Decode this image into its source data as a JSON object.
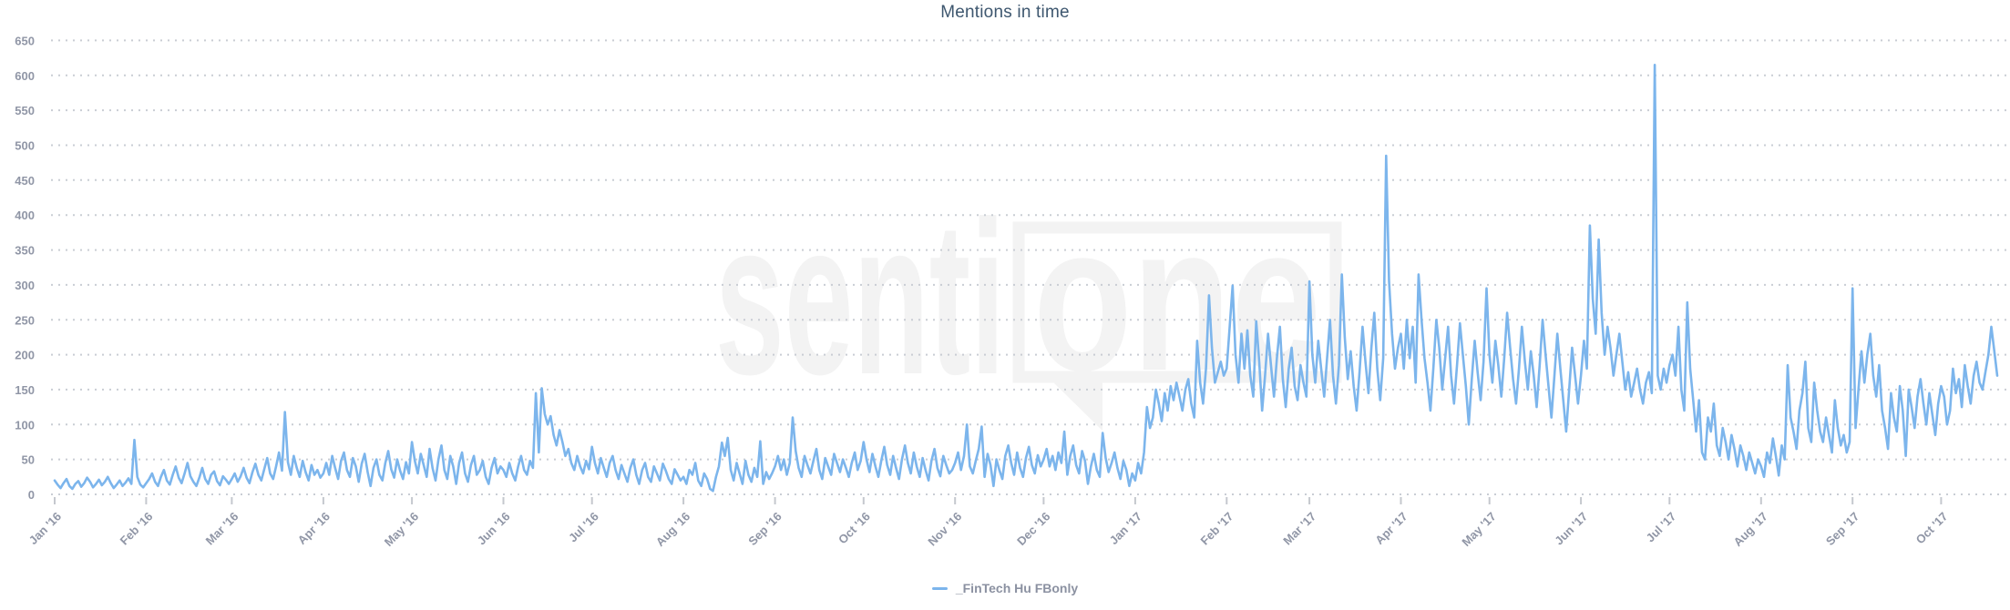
{
  "title": "Mentions in time",
  "legend": {
    "label": "_FinTech Hu FBonly",
    "marker_color": "#7cb5ec"
  },
  "watermark": {
    "part1": "senti",
    "part2": "one"
  },
  "colors": {
    "series_line": "#7cb5ec",
    "grid_dots": "#c9cdd4",
    "axis_labels": "#9096a6",
    "title_text": "#3e576f",
    "legend_text": "#8b91a1",
    "watermark": "#f3f3f3",
    "background": "#ffffff"
  },
  "chart_data": {
    "type": "line",
    "title": "Mentions in time",
    "xlabel": "",
    "ylabel": "",
    "ylim": [
      0,
      650
    ],
    "ytick_step": 50,
    "yticks": [
      0,
      50,
      100,
      150,
      200,
      250,
      300,
      350,
      400,
      450,
      500,
      550,
      600,
      650
    ],
    "grid": "dotted horizontal gridlines",
    "legend_position": "bottom center",
    "x_tick_labels": [
      "Jan '16",
      "Feb '16",
      "Mar '16",
      "Apr '16",
      "May '16",
      "Jun '16",
      "Jul '16",
      "Aug '16",
      "Sep '16",
      "Oct '16",
      "Nov '16",
      "Dec '16",
      "Jan '17",
      "Feb '17",
      "Mar '17",
      "Apr '17",
      "May '17",
      "Jun '17",
      "Jul '17",
      "Aug '17",
      "Sep '17",
      "Oct '17"
    ],
    "x_tick_day_offsets": [
      0,
      31,
      60,
      91,
      121,
      152,
      182,
      213,
      244,
      274,
      305,
      335,
      366,
      397,
      425,
      456,
      486,
      517,
      547,
      578,
      609,
      639
    ],
    "n_points": 659,
    "series": [
      {
        "name": "_FinTech Hu FBonly",
        "color": "#7cb5ec",
        "values": [
          20,
          14,
          9,
          16,
          22,
          12,
          8,
          15,
          19,
          11,
          16,
          24,
          18,
          10,
          15,
          21,
          13,
          18,
          25,
          16,
          9,
          14,
          20,
          12,
          17,
          23,
          15,
          78,
          25,
          14,
          10,
          16,
          22,
          30,
          18,
          12,
          25,
          35,
          20,
          14,
          28,
          40,
          24,
          16,
          30,
          45,
          26,
          18,
          12,
          24,
          38,
          22,
          15,
          28,
          33,
          19,
          13,
          26,
          21,
          15,
          22,
          30,
          18,
          26,
          38,
          24,
          16,
          32,
          44,
          28,
          20,
          36,
          52,
          30,
          22,
          40,
          60,
          34,
          118,
          46,
          28,
          55,
          38,
          25,
          48,
          32,
          20,
          42,
          28,
          35,
          24,
          30,
          45,
          28,
          55,
          38,
          22,
          48,
          60,
          35,
          25,
          52,
          40,
          18,
          44,
          58,
          32,
          12,
          38,
          50,
          28,
          20,
          45,
          62,
          36,
          24,
          50,
          34,
          22,
          46,
          30,
          75,
          48,
          30,
          58,
          42,
          25,
          65,
          38,
          20,
          50,
          70,
          35,
          22,
          55,
          40,
          15,
          45,
          60,
          30,
          18,
          42,
          55,
          28,
          35,
          48,
          25,
          15,
          38,
          52,
          30,
          40,
          35,
          25,
          45,
          30,
          20,
          40,
          55,
          35,
          28,
          48,
          38,
          145,
          60,
          152,
          115,
          100,
          112,
          85,
          70,
          92,
          75,
          55,
          65,
          45,
          35,
          55,
          40,
          30,
          48,
          36,
          68,
          45,
          30,
          52,
          38,
          25,
          45,
          55,
          35,
          22,
          42,
          30,
          18,
          38,
          50,
          28,
          15,
          35,
          45,
          25,
          18,
          40,
          30,
          20,
          44,
          34,
          22,
          15,
          36,
          28,
          20,
          25,
          15,
          35,
          28,
          45,
          20,
          12,
          30,
          22,
          8,
          5,
          25,
          40,
          74,
          55,
          81,
          35,
          20,
          45,
          30,
          15,
          48,
          28,
          18,
          38,
          25,
          76,
          15,
          32,
          22,
          30,
          40,
          55,
          35,
          50,
          28,
          45,
          110,
          62,
          38,
          25,
          55,
          42,
          30,
          48,
          65,
          35,
          22,
          52,
          40,
          28,
          58,
          45,
          32,
          50,
          38,
          25,
          45,
          60,
          35,
          48,
          75,
          50,
          32,
          58,
          40,
          25,
          48,
          68,
          42,
          28,
          55,
          38,
          22,
          50,
          70,
          45,
          30,
          60,
          40,
          25,
          52,
          35,
          20,
          48,
          65,
          38,
          26,
          55,
          42,
          30,
          35,
          45,
          60,
          35,
          55,
          100,
          40,
          30,
          48,
          65,
          97,
          25,
          58,
          42,
          12,
          50,
          35,
          22,
          55,
          70,
          45,
          28,
          60,
          38,
          25,
          52,
          68,
          42,
          30,
          56,
          40,
          50,
          65,
          40,
          55,
          35,
          60,
          45,
          90,
          28,
          55,
          70,
          42,
          30,
          62,
          48,
          15,
          40,
          58,
          35,
          25,
          88,
          52,
          32,
          45,
          60,
          38,
          22,
          48,
          35,
          12,
          30,
          20,
          45,
          30,
          60,
          125,
          95,
          110,
          150,
          130,
          105,
          145,
          120,
          155,
          135,
          160,
          140,
          120,
          150,
          165,
          130,
          110,
          220,
          160,
          130,
          180,
          285,
          210,
          160,
          175,
          190,
          170,
          180,
          240,
          299,
          200,
          160,
          230,
          180,
          235,
          170,
          140,
          248,
          190,
          120,
          170,
          230,
          185,
          140,
          195,
          240,
          165,
          125,
          180,
          210,
          155,
          135,
          185,
          160,
          140,
          305,
          200,
          160,
          220,
          180,
          140,
          195,
          250,
          170,
          130,
          185,
          315,
          225,
          165,
          205,
          155,
          120,
          175,
          240,
          190,
          145,
          210,
          260,
          180,
          135,
          195,
          485,
          305,
          230,
          180,
          210,
          230,
          180,
          250,
          195,
          240,
          160,
          315,
          250,
          195,
          160,
          120,
          180,
          250,
          210,
          150,
          195,
          240,
          170,
          130,
          185,
          245,
          200,
          155,
          100,
          165,
          220,
          175,
          135,
          190,
          295,
          200,
          160,
          220,
          185,
          140,
          195,
          260,
          210,
          165,
          130,
          180,
          240,
          190,
          150,
          205,
          170,
          125,
          185,
          250,
          200,
          155,
          110,
          170,
          230,
          180,
          135,
          90,
          150,
          210,
          170,
          130,
          170,
          220,
          180,
          385,
          280,
          230,
          365,
          260,
          200,
          240,
          210,
          170,
          200,
          230,
          190,
          150,
          175,
          140,
          160,
          180,
          150,
          130,
          160,
          175,
          145,
          615,
          170,
          150,
          180,
          160,
          185,
          200,
          170,
          240,
          150,
          120,
          275,
          180,
          135,
          90,
          135,
          60,
          50,
          110,
          90,
          130,
          70,
          55,
          95,
          75,
          50,
          85,
          65,
          40,
          70,
          55,
          35,
          60,
          45,
          30,
          50,
          40,
          25,
          60,
          45,
          80,
          55,
          27,
          70,
          50,
          185,
          110,
          90,
          65,
          120,
          145,
          190,
          95,
          75,
          160,
          120,
          90,
          75,
          110,
          85,
          60,
          135,
          95,
          70,
          85,
          60,
          75,
          295,
          95,
          150,
          205,
          160,
          200,
          230,
          170,
          140,
          185,
          120,
          95,
          65,
          145,
          110,
          90,
          155,
          120,
          55,
          150,
          125,
          95,
          140,
          165,
          130,
          100,
          145,
          115,
          85,
          130,
          155,
          140,
          100,
          120,
          180,
          145,
          165,
          125,
          185,
          155,
          130,
          170,
          190,
          160,
          150,
          175,
          200,
          240,
          205,
          170
        ]
      }
    ]
  }
}
